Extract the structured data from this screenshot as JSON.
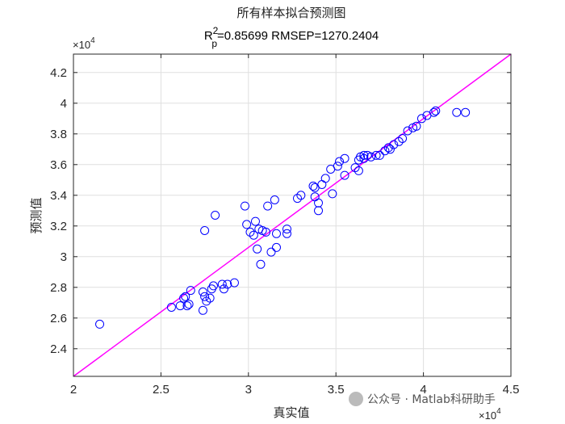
{
  "chart_data": {
    "type": "scatter",
    "title_line1": "所有样本拟合预测图",
    "title_r_symbol": "R",
    "title_r_sup": "2",
    "title_r_sub": "p",
    "title_rest": "=0.85699  RMSEP=1270.2404",
    "xlabel": "真实值",
    "ylabel": "预测值",
    "x_exponent_label": "×10",
    "x_exponent_power": "4",
    "y_exponent_label": "×10",
    "y_exponent_power": "4",
    "xlim": [
      20000,
      45000
    ],
    "ylim": [
      22200,
      43200
    ],
    "x_ticks": [
      20000,
      25000,
      30000,
      35000,
      40000,
      45000
    ],
    "x_tick_labels": [
      "2",
      "2.5",
      "3",
      "3.5",
      "4",
      "4.5"
    ],
    "y_ticks": [
      24000,
      26000,
      28000,
      30000,
      32000,
      34000,
      36000,
      38000,
      40000,
      42000
    ],
    "y_tick_labels": [
      "2.4",
      "2.6",
      "2.8",
      "3",
      "3.2",
      "3.4",
      "3.6",
      "3.8",
      "4",
      "4.2"
    ],
    "grid": true,
    "fit_line": {
      "x": [
        20000,
        45000
      ],
      "y": [
        22200,
        43200
      ],
      "color": "#ff00ff"
    },
    "marker_color": "#0000ff",
    "points": [
      [
        21500,
        25600
      ],
      [
        25600,
        26700
      ],
      [
        26100,
        26800
      ],
      [
        26300,
        27300
      ],
      [
        26400,
        27400
      ],
      [
        26500,
        26800
      ],
      [
        26600,
        26900
      ],
      [
        26700,
        27800
      ],
      [
        27400,
        27700
      ],
      [
        27400,
        26500
      ],
      [
        27500,
        27400
      ],
      [
        27500,
        31700
      ],
      [
        27600,
        27100
      ],
      [
        27800,
        27300
      ],
      [
        27900,
        27900
      ],
      [
        28000,
        28100
      ],
      [
        28100,
        32700
      ],
      [
        28500,
        28200
      ],
      [
        28600,
        27900
      ],
      [
        28800,
        28200
      ],
      [
        29200,
        28300
      ],
      [
        29800,
        33300
      ],
      [
        29900,
        32100
      ],
      [
        30100,
        31600
      ],
      [
        30300,
        31400
      ],
      [
        30400,
        32300
      ],
      [
        30500,
        30500
      ],
      [
        30600,
        31800
      ],
      [
        30700,
        29500
      ],
      [
        30800,
        31700
      ],
      [
        31000,
        31600
      ],
      [
        31100,
        33300
      ],
      [
        31300,
        30300
      ],
      [
        31500,
        33700
      ],
      [
        31600,
        31500
      ],
      [
        31600,
        30600
      ],
      [
        32200,
        31800
      ],
      [
        32200,
        31500
      ],
      [
        32800,
        33800
      ],
      [
        33000,
        34000
      ],
      [
        33700,
        34600
      ],
      [
        33800,
        34500
      ],
      [
        33800,
        33900
      ],
      [
        34000,
        33500
      ],
      [
        34000,
        33000
      ],
      [
        34200,
        34700
      ],
      [
        34400,
        35100
      ],
      [
        34700,
        35700
      ],
      [
        34800,
        34100
      ],
      [
        35100,
        35900
      ],
      [
        35200,
        36200
      ],
      [
        35500,
        36400
      ],
      [
        35500,
        35300
      ],
      [
        36100,
        35800
      ],
      [
        36300,
        35600
      ],
      [
        36300,
        36300
      ],
      [
        36400,
        36500
      ],
      [
        36600,
        36600
      ],
      [
        36600,
        36400
      ],
      [
        36800,
        36600
      ],
      [
        37000,
        36500
      ],
      [
        37300,
        36600
      ],
      [
        37500,
        36600
      ],
      [
        37800,
        36900
      ],
      [
        38000,
        37100
      ],
      [
        38100,
        37000
      ],
      [
        38300,
        37300
      ],
      [
        38600,
        37500
      ],
      [
        38800,
        37700
      ],
      [
        39100,
        38200
      ],
      [
        39400,
        38400
      ],
      [
        39600,
        38500
      ],
      [
        39900,
        39000
      ],
      [
        40200,
        39200
      ],
      [
        40600,
        39400
      ],
      [
        40700,
        39500
      ],
      [
        41900,
        39400
      ],
      [
        42400,
        39400
      ]
    ]
  },
  "watermark": {
    "text": "公众号 · Matlab科研助手"
  }
}
